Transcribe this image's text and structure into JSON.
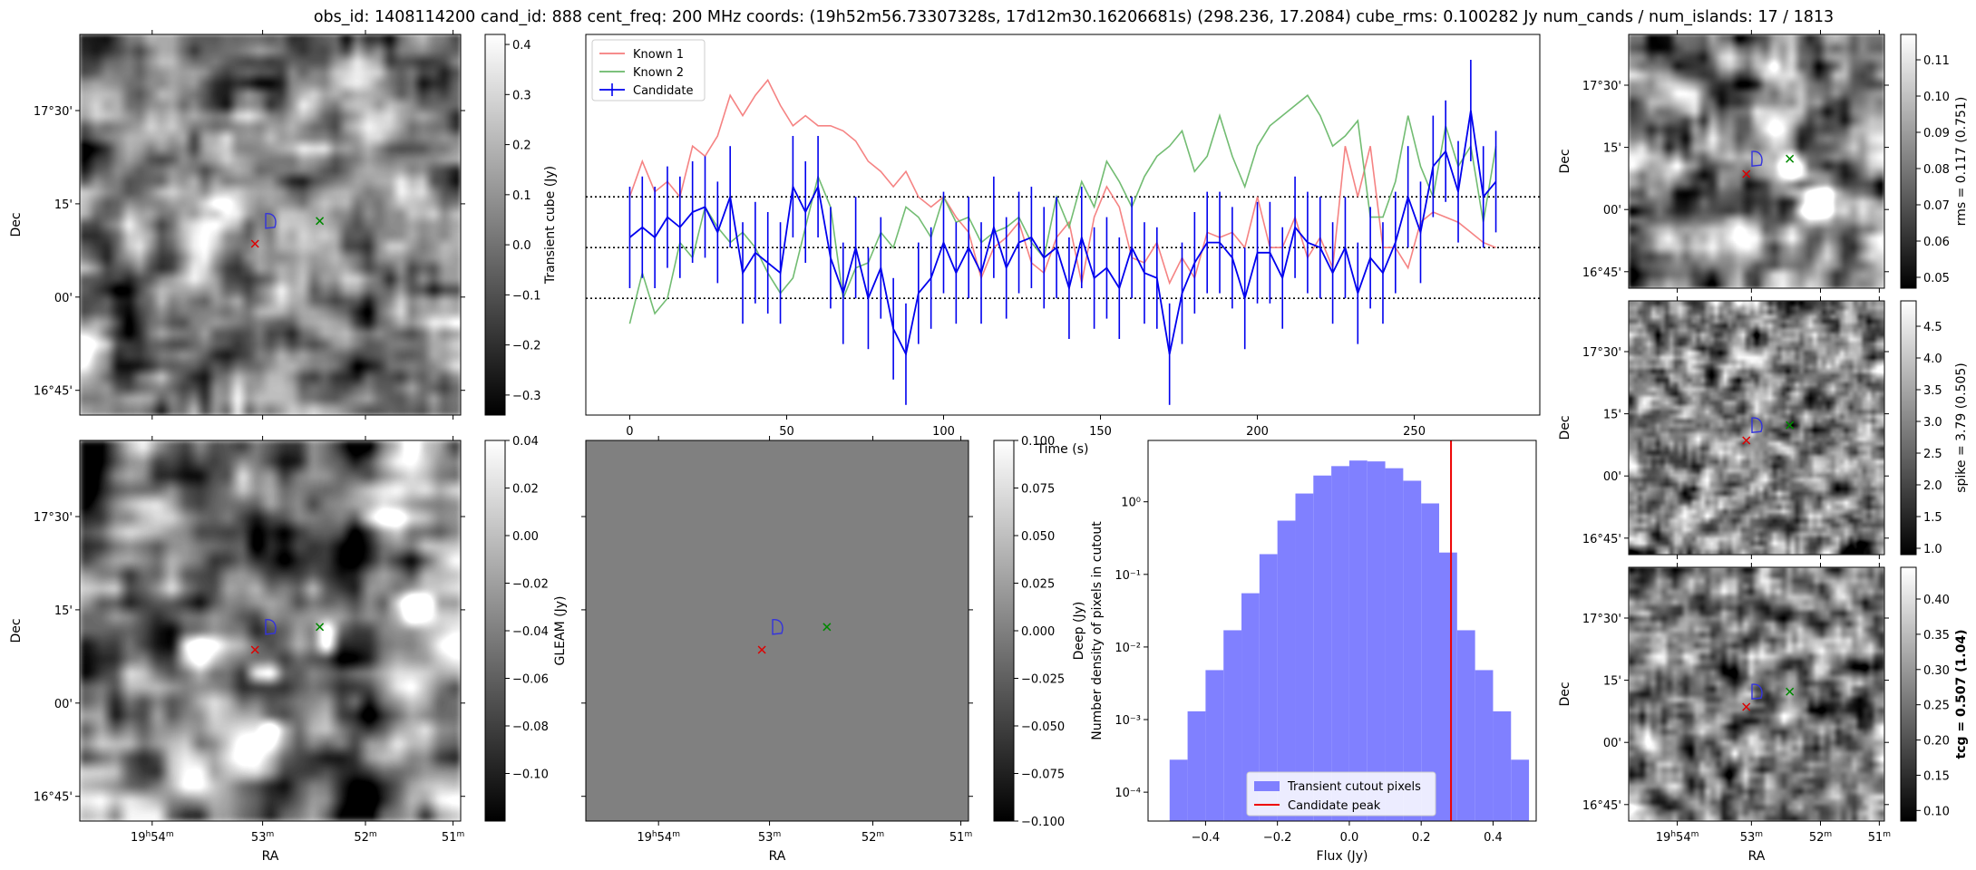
{
  "suptitle": "obs_id: 1408114200 cand_id: 888 cent_freq: 200 MHz coords: (19h52m56.73307328s, 17d12m30.16206681s) (298.236, 17.2084) cube_rms: 0.100282 Jy num_cands / num_islands: 17 / 1813",
  "sky": {
    "ra_label": "RA",
    "dec_label": "Dec",
    "ra_ticks": [
      "19h54m",
      "53m",
      "52m",
      "51m"
    ],
    "dec_ticks": [
      "17°30'",
      "15'",
      "00'",
      "16°45'"
    ],
    "marker_colors": {
      "candidate_contour": "#3333dd",
      "red_cross": "#dd0000",
      "green_cross": "#008800"
    }
  },
  "chart_data": [
    {
      "type": "heatmap",
      "id": "transient_cube",
      "colormap": "gray",
      "colorbar": {
        "label": "Transient cube (Jy)",
        "range": [
          -0.34,
          0.42
        ],
        "ticks": [
          "0.4",
          "0.3",
          "0.2",
          "0.1",
          "0.0",
          "−0.1",
          "−0.2",
          "−0.3"
        ],
        "tick_values": [
          0.4,
          0.3,
          0.2,
          0.1,
          0.0,
          -0.1,
          -0.2,
          -0.3
        ]
      }
    },
    {
      "type": "line",
      "id": "lightcurve",
      "xlabel": "Time (s)",
      "xlim": [
        -14,
        290
      ],
      "ylim": [
        -0.33,
        0.42
      ],
      "xticks": [
        0,
        50,
        100,
        150,
        200,
        250
      ],
      "hlines": [
        0.1,
        0.0,
        -0.1
      ],
      "legend": {
        "placement": "top-left",
        "entries": [
          "Known 1",
          "Known 2",
          "Candidate"
        ]
      },
      "series": [
        {
          "name": "Known 1",
          "color": "#f47c7c",
          "x": [
            0,
            4,
            8,
            12,
            16,
            20,
            24,
            28,
            32,
            36,
            40,
            44,
            48,
            52,
            56,
            60,
            64,
            68,
            72,
            76,
            80,
            84,
            88,
            92,
            96,
            100,
            104,
            108,
            112,
            116,
            120,
            124,
            128,
            132,
            136,
            140,
            144,
            148,
            152,
            156,
            160,
            164,
            168,
            172,
            176,
            180,
            184,
            188,
            192,
            196,
            200,
            204,
            208,
            212,
            216,
            220,
            224,
            228,
            232,
            236,
            240,
            244,
            248,
            252,
            256,
            260,
            264,
            268,
            272,
            276
          ],
          "values": [
            0.1,
            0.17,
            0.11,
            0.13,
            0.1,
            0.2,
            0.18,
            0.22,
            0.3,
            0.26,
            0.3,
            0.33,
            0.28,
            0.24,
            0.26,
            0.24,
            0.24,
            0.23,
            0.21,
            0.17,
            0.15,
            0.12,
            0.15,
            0.1,
            0.08,
            0.1,
            0.06,
            0.03,
            -0.06,
            0.0,
            0.02,
            0.05,
            -0.03,
            -0.05,
            0.02,
            0.05,
            -0.07,
            0.06,
            0.12,
            0.08,
            -0.02,
            -0.03,
            0.01,
            -0.07,
            -0.02,
            -0.06,
            0.03,
            0.02,
            0.03,
            0.0,
            0.1,
            0.0,
            0.0,
            0.06,
            -0.02,
            0.02,
            -0.04,
            0.2,
            0.1,
            0.2,
            0.0,
            0.0,
            -0.04,
            0.05,
            0.07,
            0.06,
            0.05,
            0.03,
            0.01,
            0.0
          ]
        },
        {
          "name": "Known 2",
          "color": "#6ab86a",
          "x": [
            0,
            4,
            8,
            12,
            16,
            20,
            24,
            28,
            32,
            36,
            40,
            44,
            48,
            52,
            56,
            60,
            64,
            68,
            72,
            76,
            80,
            84,
            88,
            92,
            96,
            100,
            104,
            108,
            112,
            116,
            120,
            124,
            128,
            132,
            136,
            140,
            144,
            148,
            152,
            156,
            160,
            164,
            168,
            172,
            176,
            180,
            184,
            188,
            192,
            196,
            200,
            204,
            208,
            212,
            216,
            220,
            224,
            228,
            232,
            236,
            240,
            244,
            248,
            252,
            256,
            260,
            264,
            268,
            272,
            276
          ],
          "values": [
            -0.15,
            -0.05,
            -0.13,
            -0.1,
            0.01,
            -0.02,
            0.08,
            0.04,
            0.01,
            0.03,
            0.0,
            -0.05,
            -0.09,
            -0.06,
            0.04,
            0.14,
            0.08,
            -0.1,
            -0.04,
            -0.03,
            0.03,
            0.0,
            0.08,
            0.06,
            0.02,
            0.1,
            0.05,
            0.06,
            0.01,
            0.03,
            0.04,
            0.06,
            0.01,
            -0.02,
            0.1,
            0.04,
            0.13,
            0.08,
            0.17,
            0.13,
            0.08,
            0.14,
            0.18,
            0.2,
            0.23,
            0.15,
            0.18,
            0.26,
            0.18,
            0.12,
            0.2,
            0.24,
            0.26,
            0.28,
            0.3,
            0.26,
            0.2,
            0.22,
            0.25,
            0.06,
            0.06,
            0.13,
            0.26,
            0.16,
            0.1,
            0.24,
            0.16,
            0.2,
            0.05,
            0.2
          ]
        },
        {
          "name": "Candidate",
          "color": "#0000ee",
          "x": [
            0,
            4,
            8,
            12,
            16,
            20,
            24,
            28,
            32,
            36,
            40,
            44,
            48,
            52,
            56,
            60,
            64,
            68,
            72,
            76,
            80,
            84,
            88,
            92,
            96,
            100,
            104,
            108,
            112,
            116,
            120,
            124,
            128,
            132,
            136,
            140,
            144,
            148,
            152,
            156,
            160,
            164,
            168,
            172,
            176,
            180,
            184,
            188,
            192,
            196,
            200,
            204,
            208,
            212,
            216,
            220,
            224,
            228,
            232,
            236,
            240,
            244,
            248,
            252,
            256,
            260,
            264,
            268,
            272,
            276
          ],
          "values": [
            0.02,
            0.04,
            0.02,
            0.06,
            0.04,
            0.07,
            0.08,
            0.03,
            0.1,
            -0.05,
            -0.01,
            -0.03,
            -0.05,
            0.12,
            0.07,
            0.12,
            -0.02,
            -0.09,
            0.0,
            -0.1,
            -0.04,
            -0.16,
            -0.21,
            -0.09,
            -0.06,
            0.01,
            -0.05,
            0.0,
            -0.05,
            0.04,
            -0.04,
            0.01,
            0.02,
            -0.02,
            0.0,
            -0.08,
            0.02,
            -0.06,
            -0.04,
            -0.08,
            0.0,
            -0.05,
            -0.06,
            -0.21,
            -0.09,
            -0.03,
            0.01,
            0.01,
            -0.02,
            -0.1,
            -0.01,
            -0.01,
            -0.06,
            0.04,
            0.01,
            0.0,
            -0.05,
            0.0,
            -0.09,
            -0.02,
            -0.05,
            0.01,
            0.1,
            0.03,
            0.16,
            0.19,
            0.11,
            0.27,
            0.1,
            0.13
          ],
          "error": 0.1
        }
      ]
    },
    {
      "type": "heatmap",
      "id": "gleam",
      "colormap": "gray",
      "colorbar": {
        "label": "GLEAM (Jy)",
        "range": [
          -0.12,
          0.04
        ],
        "ticks": [
          "0.04",
          "0.02",
          "0.00",
          "−0.02",
          "−0.04",
          "−0.06",
          "−0.08",
          "−0.10"
        ],
        "tick_values": [
          0.04,
          0.02,
          0.0,
          -0.02,
          -0.04,
          -0.06,
          -0.08,
          -0.1
        ]
      }
    },
    {
      "type": "heatmap",
      "id": "deep",
      "colormap": "gray",
      "uniform_value": 0.0,
      "colorbar": {
        "label": "Deep (Jy)",
        "range": [
          -0.1,
          0.1
        ],
        "ticks": [
          "0.100",
          "0.075",
          "0.050",
          "0.025",
          "0.000",
          "−0.025",
          "−0.050",
          "−0.075",
          "−0.100"
        ],
        "tick_values": [
          0.1,
          0.075,
          0.05,
          0.025,
          0.0,
          -0.025,
          -0.05,
          -0.075,
          -0.1
        ]
      }
    },
    {
      "type": "bar",
      "id": "histogram",
      "scale_y": "log",
      "xlabel": "Flux (Jy)",
      "ylabel": "Number density of pixels in cutout",
      "xlim": [
        -0.56,
        0.52
      ],
      "ylim": [
        4e-05,
        7
      ],
      "xticks": [
        "−0.4",
        "−0.2",
        "0.0",
        "0.2",
        "0.4"
      ],
      "xtick_values": [
        -0.4,
        -0.2,
        0.0,
        0.2,
        0.4
      ],
      "yticks": [
        "10⁰",
        "10⁻¹",
        "10⁻²",
        "10⁻³",
        "10⁻⁴"
      ],
      "ytick_values": [
        1,
        0.1,
        0.01,
        0.001,
        0.0001
      ],
      "bin_edges": [
        -0.5,
        -0.45,
        -0.4,
        -0.35,
        -0.3,
        -0.25,
        -0.2,
        -0.15,
        -0.1,
        -0.05,
        0.0,
        0.05,
        0.1,
        0.15,
        0.2,
        0.25,
        0.3,
        0.35,
        0.4,
        0.45,
        0.5
      ],
      "values": [
        0.00028,
        0.0013,
        0.0048,
        0.017,
        0.055,
        0.19,
        0.55,
        1.3,
        2.3,
        3.1,
        3.7,
        3.6,
        2.9,
        1.95,
        0.95,
        0.2,
        0.017,
        0.0048,
        0.0013,
        0.00028
      ],
      "candidate_peak": 0.283,
      "legend": {
        "placement": "bottom-center",
        "entries": [
          "Transient cutout pixels",
          "Candidate peak"
        ]
      }
    },
    {
      "type": "heatmap",
      "id": "rms_map",
      "colormap": "gray",
      "colorbar": {
        "label": "rms = 0.117 (0.751)",
        "range": [
          0.047,
          0.117
        ],
        "ticks": [
          "0.11",
          "0.10",
          "0.09",
          "0.08",
          "0.07",
          "0.06",
          "0.05"
        ],
        "tick_values": [
          0.11,
          0.1,
          0.09,
          0.08,
          0.07,
          0.06,
          0.05
        ]
      }
    },
    {
      "type": "heatmap",
      "id": "spike_map",
      "colormap": "gray",
      "colorbar": {
        "label": "spike = 3.79 (0.505)",
        "range": [
          0.9,
          4.9
        ],
        "ticks": [
          "4.5",
          "4.0",
          "3.5",
          "3.0",
          "2.5",
          "2.0",
          "1.5",
          "1.0"
        ],
        "tick_values": [
          4.5,
          4.0,
          3.5,
          3.0,
          2.5,
          2.0,
          1.5,
          1.0
        ]
      }
    },
    {
      "type": "heatmap",
      "id": "tcg_map",
      "colormap": "gray",
      "colorbar": {
        "label": "tcg = 0.507 (1.04)",
        "range": [
          0.085,
          0.445
        ],
        "ticks": [
          "0.40",
          "0.35",
          "0.30",
          "0.25",
          "0.20",
          "0.15",
          "0.10"
        ],
        "tick_values": [
          0.4,
          0.35,
          0.3,
          0.25,
          0.2,
          0.15,
          0.1
        ]
      }
    }
  ]
}
